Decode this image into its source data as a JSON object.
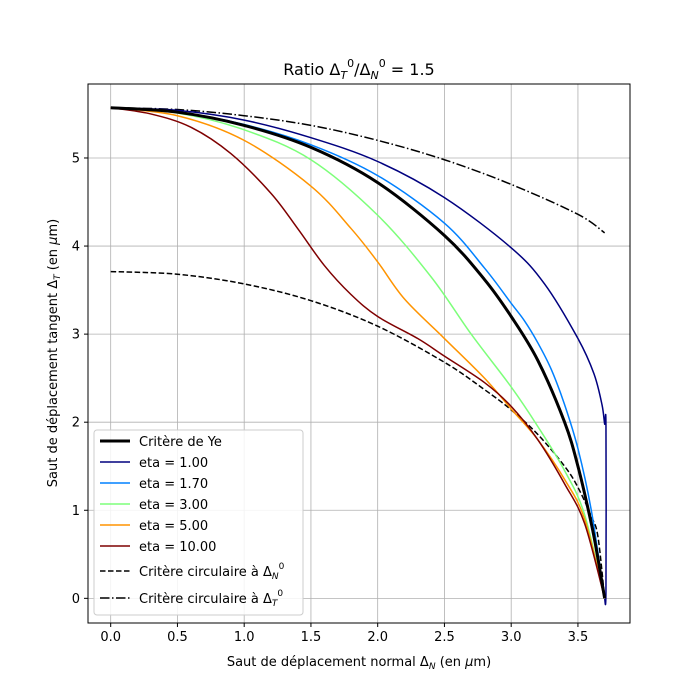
{
  "chart_data": {
    "type": "line",
    "title": "Ratio Δ_T^0/Δ_N^0 = 1.5",
    "title_parts": {
      "a": "Ratio Δ",
      "a_sub": "T",
      "a_sup": "0",
      "b": "/Δ",
      "b_sub": "N",
      "b_sup": "0",
      "c": " = 1.5"
    },
    "xlabel": "Saut de déplacement normal Δ_N (en μm)",
    "xlabel_parts": {
      "a": "Saut de déplacement normal Δ",
      "sub": "N",
      "b": " (en ",
      "mu": "μ",
      "c": "m)"
    },
    "ylabel": "Saut de déplacement tangent Δ_T (en μm)",
    "ylabel_parts": {
      "a": "Saut de déplacement tangent Δ",
      "sub": "T",
      "b": " (en ",
      "mu": "μ",
      "c": "m)"
    },
    "xlim": [
      -0.17,
      3.89
    ],
    "ylim": [
      -0.28,
      5.84
    ],
    "xticks": [
      0.0,
      0.5,
      1.0,
      1.5,
      2.0,
      2.5,
      3.0,
      3.5
    ],
    "xtick_labels": [
      "0.0",
      "0.5",
      "1.0",
      "1.5",
      "2.0",
      "2.5",
      "3.0",
      "3.5"
    ],
    "yticks": [
      0,
      1,
      2,
      3,
      4,
      5
    ],
    "ytick_labels": [
      "0",
      "1",
      "2",
      "3",
      "4",
      "5"
    ],
    "grid": true,
    "legend_position": "lower-left",
    "series": [
      {
        "name": "Critère de Ye",
        "color": "#000000",
        "style": "solid",
        "width": 3,
        "x": [
          0,
          0.5,
          1.0,
          1.5,
          2.0,
          2.5,
          2.8,
          3.0,
          3.2,
          3.4,
          3.5,
          3.6,
          3.65,
          3.7
        ],
        "y": [
          5.57,
          5.52,
          5.37,
          5.12,
          4.72,
          4.12,
          3.62,
          3.2,
          2.7,
          2.0,
          1.5,
          0.85,
          0.45,
          0.0
        ]
      },
      {
        "name": "eta = 1.00",
        "color": "#00007f",
        "style": "solid",
        "width": 1.5,
        "x": [
          0,
          0.5,
          1.0,
          1.5,
          2.0,
          2.5,
          3.0,
          3.25,
          3.5,
          3.62,
          3.68,
          3.7,
          3.71,
          3.71,
          3.7
        ],
        "y": [
          5.57,
          5.54,
          5.43,
          5.23,
          4.96,
          4.55,
          3.98,
          3.57,
          2.95,
          2.55,
          2.2,
          1.98,
          1.95,
          0.1,
          0.0
        ]
      },
      {
        "name": "eta = 1.70",
        "color": "#0080ff",
        "style": "solid",
        "width": 1.5,
        "x": [
          0,
          0.5,
          1.0,
          1.5,
          2.0,
          2.5,
          2.8,
          3.0,
          3.1,
          3.2,
          3.3,
          3.4,
          3.5,
          3.6,
          3.7
        ],
        "y": [
          5.57,
          5.52,
          5.38,
          5.15,
          4.8,
          4.26,
          3.75,
          3.35,
          3.15,
          2.9,
          2.6,
          2.2,
          1.7,
          1.0,
          0.0
        ]
      },
      {
        "name": "eta = 3.00",
        "color": "#7dff7a",
        "style": "solid",
        "width": 1.5,
        "x": [
          0,
          0.5,
          1.0,
          1.5,
          2.0,
          2.4,
          2.7,
          3.0,
          3.2,
          3.4,
          3.55,
          3.7
        ],
        "y": [
          5.57,
          5.51,
          5.32,
          4.98,
          4.35,
          3.65,
          3.0,
          2.4,
          1.95,
          1.45,
          0.95,
          0.0
        ]
      },
      {
        "name": "eta = 5.00",
        "color": "#ff9400",
        "style": "solid",
        "width": 1.5,
        "x": [
          0,
          0.5,
          1.0,
          1.5,
          1.8,
          2.0,
          2.2,
          2.5,
          2.8,
          3.0,
          3.2,
          3.4,
          3.55,
          3.7
        ],
        "y": [
          5.57,
          5.48,
          5.2,
          4.68,
          4.2,
          3.82,
          3.4,
          2.95,
          2.5,
          2.15,
          1.8,
          1.35,
          0.9,
          0.0
        ]
      },
      {
        "name": "eta = 10.00",
        "color": "#7f0000",
        "style": "solid",
        "width": 1.5,
        "x": [
          0,
          0.3,
          0.6,
          0.9,
          1.2,
          1.4,
          1.6,
          1.8,
          2.0,
          2.3,
          2.5,
          2.8,
          3.0,
          3.2,
          3.4,
          3.55,
          3.7
        ],
        "y": [
          5.57,
          5.5,
          5.35,
          5.05,
          4.6,
          4.2,
          3.78,
          3.45,
          3.2,
          2.95,
          2.75,
          2.45,
          2.18,
          1.8,
          1.3,
          0.85,
          0.0
        ]
      },
      {
        "name": "Critère circulaire à Δ_N^0",
        "label_parts": {
          "a": "Critère circulaire à Δ",
          "sub": "N",
          "sup": "0"
        },
        "color": "#000000",
        "style": "dashed",
        "width": 1.5,
        "x": [
          0,
          0.5,
          1.0,
          1.5,
          2.0,
          2.5,
          2.8,
          3.0,
          3.2,
          3.4,
          3.5,
          3.6,
          3.65,
          3.7
        ],
        "y": [
          3.71,
          3.68,
          3.57,
          3.38,
          3.09,
          2.68,
          2.37,
          2.14,
          1.86,
          1.5,
          1.26,
          0.93,
          0.7,
          0.0
        ]
      },
      {
        "name": "Critère circulaire à Δ_T^0",
        "label_parts": {
          "a": "Critère circulaire à Δ",
          "sub": "T",
          "sup": "0"
        },
        "color": "#000000",
        "style": "dashdot",
        "width": 1.5,
        "x": [
          0,
          0.5,
          1.0,
          1.5,
          2.0,
          2.5,
          3.0,
          3.5,
          3.7
        ],
        "y": [
          5.57,
          5.55,
          5.48,
          5.37,
          5.2,
          4.98,
          4.7,
          4.36,
          4.15
        ]
      }
    ]
  }
}
